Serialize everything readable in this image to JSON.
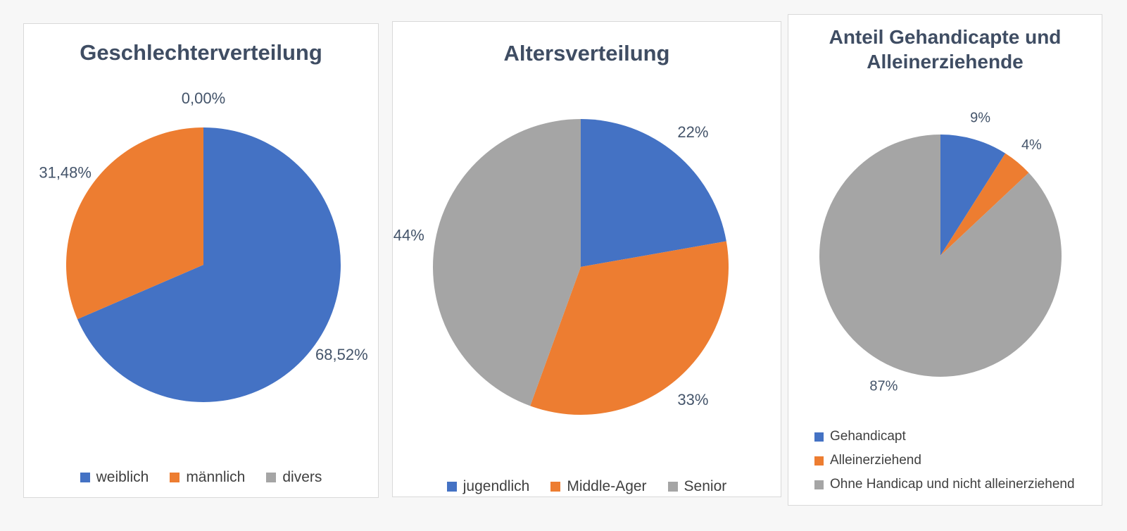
{
  "colors": {
    "blue": "#4472C4",
    "orange": "#ED7D31",
    "gray": "#A5A5A5",
    "title_text": "#3F4D63",
    "label_text": "#44546A",
    "legend_text": "#404040",
    "panel_border": "#D9D9D9",
    "panel_background": "#FFFFFF",
    "page_background": "#F7F7F7"
  },
  "chart_data": [
    {
      "type": "pie",
      "title": "Geschlechterverteilung",
      "legend_position": "bottom-horizontal",
      "labels_position": "outside-end",
      "slices": [
        {
          "name": "weiblich",
          "value": 68.52,
          "label": "68,52%",
          "color_key": "blue"
        },
        {
          "name": "männlich",
          "value": 31.48,
          "label": "31,48%",
          "color_key": "orange"
        },
        {
          "name": "divers",
          "value": 0,
          "label": "0,00%",
          "color_key": "gray"
        }
      ]
    },
    {
      "type": "pie",
      "title": "Altersverteilung",
      "legend_position": "bottom-horizontal",
      "labels_position": "outside-end",
      "slices": [
        {
          "name": "jugendlich",
          "value": 22,
          "label": "22%",
          "color_key": "blue"
        },
        {
          "name": "Middle-Ager",
          "value": 33,
          "label": "33%",
          "color_key": "orange"
        },
        {
          "name": "Senior",
          "value": 44,
          "label": "44%",
          "color_key": "gray"
        }
      ]
    },
    {
      "type": "pie",
      "title": "Anteil Gehandicapte und Alleinerziehende",
      "legend_position": "bottom-left-vertical",
      "labels_position": "outside-end",
      "slices": [
        {
          "name": "Gehandicapt",
          "value": 9,
          "label": "9%",
          "color_key": "blue"
        },
        {
          "name": "Alleinerziehend",
          "value": 4,
          "label": "4%",
          "color_key": "orange"
        },
        {
          "name": "Ohne Handicap und nicht alleinerziehend",
          "value": 87,
          "label": "87%",
          "color_key": "gray"
        }
      ]
    }
  ]
}
